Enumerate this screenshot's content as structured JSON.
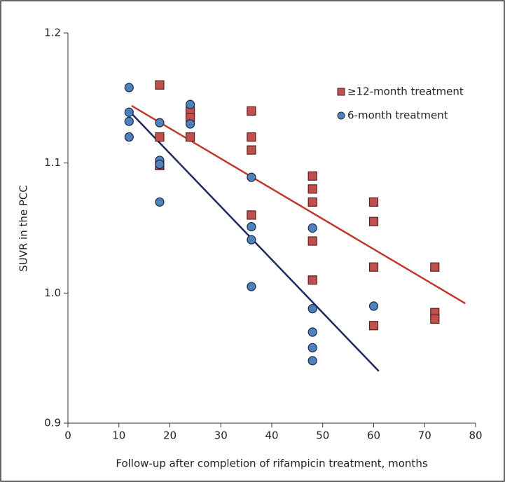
{
  "chart_data": {
    "type": "scatter",
    "xlabel": "Follow-up after completion of rifampicin treatment, months",
    "ylabel": "SUVR in the PCC",
    "xlim": [
      0,
      80
    ],
    "xticks": [
      0,
      10,
      20,
      30,
      40,
      50,
      60,
      70,
      80
    ],
    "ylim": [
      0.9,
      1.2
    ],
    "yticks": [
      {
        "value": 0.9,
        "label": "0.9"
      },
      {
        "value": 1.0,
        "label": "1.0"
      },
      {
        "value": 1.1,
        "label": "1.1"
      },
      {
        "value": 1.2,
        "label": "1.2"
      }
    ],
    "legend": "upper right",
    "series": [
      {
        "name": "≥12-month treatment",
        "color": "#c0504d",
        "line_color": "#c0392b",
        "marker": "square",
        "x": [
          18,
          18,
          18,
          24,
          24,
          24,
          36,
          36,
          36,
          36,
          48,
          48,
          48,
          48,
          48,
          60,
          60,
          60,
          60,
          72,
          72,
          72
        ],
        "values": [
          1.16,
          1.12,
          1.098,
          1.14,
          1.135,
          1.12,
          1.14,
          1.12,
          1.11,
          1.06,
          1.09,
          1.08,
          1.07,
          1.04,
          1.01,
          1.07,
          1.055,
          1.02,
          0.975,
          1.02,
          0.985,
          0.98
        ],
        "fit": {
          "x": [
            12.5,
            78
          ],
          "values": [
            1.144,
            0.992
          ]
        }
      },
      {
        "name": "6-month treatment",
        "color": "#4f81bd",
        "line_color": "#1f2a5c",
        "marker": "circle",
        "x": [
          12,
          12,
          12,
          12,
          18,
          18,
          18,
          18,
          24,
          24,
          36,
          36,
          36,
          36,
          48,
          48,
          48,
          48,
          48,
          60
        ],
        "values": [
          1.158,
          1.139,
          1.132,
          1.12,
          1.131,
          1.102,
          1.099,
          1.07,
          1.145,
          1.13,
          1.089,
          1.051,
          1.041,
          1.005,
          1.05,
          0.988,
          0.97,
          0.958,
          0.948,
          0.99
        ],
        "fit": {
          "x": [
            12,
            61
          ],
          "values": [
            1.14,
            0.94
          ]
        }
      }
    ]
  }
}
